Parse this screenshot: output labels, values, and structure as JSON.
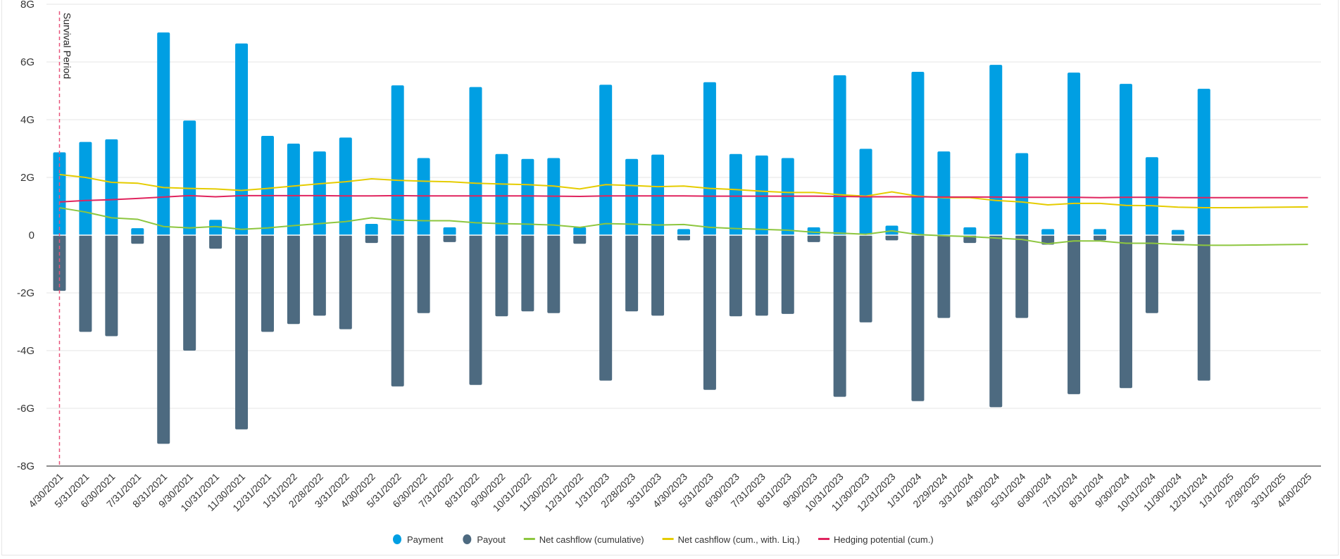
{
  "chart_data": {
    "type": "bar",
    "title": "",
    "xlabel": "",
    "ylabel": "",
    "ylim": [
      -8,
      8
    ],
    "y_unit": "G",
    "yticks": [
      "8G",
      "6G",
      "4G",
      "2G",
      "0",
      "-2G",
      "-4G",
      "-6G",
      "-8G"
    ],
    "ytick_values": [
      8,
      6,
      4,
      2,
      0,
      -2,
      -4,
      -6,
      -8
    ],
    "grid": true,
    "legend_position": "bottom",
    "annotation": {
      "label": "Survival Period",
      "category": "4/30/2021",
      "color": "#e8547a"
    },
    "categories": [
      "4/30/2021",
      "5/31/2021",
      "6/30/2021",
      "7/31/2021",
      "8/31/2021",
      "9/30/2021",
      "10/31/2021",
      "11/30/2021",
      "12/31/2021",
      "1/31/2022",
      "2/28/2022",
      "3/31/2022",
      "4/30/2022",
      "5/31/2022",
      "6/30/2022",
      "7/31/2022",
      "8/31/2022",
      "9/30/2022",
      "10/31/2022",
      "11/30/2022",
      "12/31/2022",
      "1/31/2023",
      "2/28/2023",
      "3/31/2023",
      "4/30/2023",
      "5/31/2023",
      "6/30/2023",
      "7/31/2023",
      "8/31/2023",
      "9/30/2023",
      "10/31/2023",
      "11/30/2023",
      "12/31/2023",
      "1/31/2024",
      "2/29/2024",
      "3/31/2024",
      "4/30/2024",
      "5/31/2024",
      "6/30/2024",
      "7/31/2024",
      "8/31/2024",
      "9/30/2024",
      "10/31/2024",
      "11/30/2024",
      "12/31/2024",
      "1/31/2025",
      "2/28/2025",
      "3/31/2025",
      "4/30/2025"
    ],
    "series": [
      {
        "name": "Payment",
        "type": "bar",
        "color": "#009fe3",
        "values": [
          2.87,
          3.23,
          3.32,
          0.24,
          7.02,
          3.97,
          0.53,
          6.64,
          3.44,
          3.17,
          2.9,
          3.38,
          0.39,
          5.19,
          2.67,
          0.27,
          5.13,
          2.81,
          2.64,
          2.67,
          0.27,
          5.21,
          2.64,
          2.79,
          0.21,
          5.3,
          2.81,
          2.76,
          2.67,
          0.27,
          5.54,
          2.99,
          0.33,
          5.66,
          2.9,
          0.27,
          5.9,
          2.84,
          0.21,
          5.63,
          0.21,
          5.24,
          2.7,
          0.18,
          5.07,
          null,
          null,
          null,
          null
        ]
      },
      {
        "name": "Payout",
        "type": "bar",
        "color": "#4d6a80",
        "values": [
          -1.93,
          -3.35,
          -3.5,
          -0.3,
          -7.23,
          -4.0,
          -0.47,
          -6.73,
          -3.35,
          -3.08,
          -2.79,
          -3.26,
          -0.27,
          -5.24,
          -2.7,
          -0.24,
          -5.19,
          -2.81,
          -2.64,
          -2.7,
          -0.3,
          -5.04,
          -2.64,
          -2.79,
          -0.18,
          -5.36,
          -2.81,
          -2.79,
          -2.73,
          -0.24,
          -5.6,
          -3.02,
          -0.18,
          -5.75,
          -2.87,
          -0.27,
          -5.96,
          -2.87,
          -0.33,
          -5.51,
          -0.18,
          -5.3,
          -2.7,
          -0.21,
          -5.04,
          null,
          null,
          null,
          null
        ]
      },
      {
        "name": "Net cashflow (cumulative)",
        "type": "line",
        "color": "#8dc63f",
        "values": [
          0.95,
          0.8,
          0.6,
          0.55,
          0.3,
          0.25,
          0.3,
          0.2,
          0.25,
          0.33,
          0.4,
          0.47,
          0.6,
          0.52,
          0.5,
          0.5,
          0.43,
          0.4,
          0.38,
          0.35,
          0.27,
          0.4,
          0.38,
          0.35,
          0.37,
          0.27,
          0.23,
          0.2,
          0.17,
          0.1,
          0.07,
          0.03,
          0.15,
          0.02,
          -0.02,
          -0.05,
          -0.1,
          -0.15,
          -0.3,
          -0.2,
          -0.2,
          -0.28,
          -0.28,
          -0.32,
          -0.35,
          -0.35,
          -0.34,
          -0.33,
          -0.32
        ]
      },
      {
        "name": "Net cashflow (cum., with. Liq.)",
        "type": "line",
        "color": "#e5cc00",
        "values": [
          2.1,
          2.0,
          1.83,
          1.8,
          1.65,
          1.62,
          1.6,
          1.55,
          1.62,
          1.7,
          1.78,
          1.85,
          1.95,
          1.9,
          1.87,
          1.85,
          1.8,
          1.77,
          1.75,
          1.7,
          1.6,
          1.75,
          1.72,
          1.68,
          1.7,
          1.62,
          1.58,
          1.52,
          1.48,
          1.48,
          1.4,
          1.35,
          1.5,
          1.35,
          1.3,
          1.3,
          1.2,
          1.15,
          1.05,
          1.1,
          1.1,
          1.03,
          1.02,
          0.97,
          0.95,
          0.95,
          0.96,
          0.97,
          0.98
        ]
      },
      {
        "name": "Hedging potential (cum.)",
        "type": "line",
        "color": "#e0245e",
        "values": [
          1.15,
          1.2,
          1.23,
          1.27,
          1.32,
          1.37,
          1.33,
          1.37,
          1.37,
          1.37,
          1.37,
          1.36,
          1.36,
          1.37,
          1.36,
          1.36,
          1.36,
          1.36,
          1.36,
          1.35,
          1.34,
          1.36,
          1.36,
          1.36,
          1.36,
          1.35,
          1.35,
          1.35,
          1.35,
          1.35,
          1.34,
          1.33,
          1.33,
          1.33,
          1.32,
          1.32,
          1.32,
          1.31,
          1.31,
          1.31,
          1.3,
          1.31,
          1.31,
          1.3,
          1.3,
          1.3,
          1.3,
          1.3,
          1.3
        ]
      }
    ]
  }
}
